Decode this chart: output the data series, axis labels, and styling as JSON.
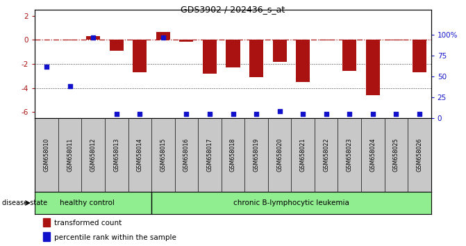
{
  "title": "GDS3902 / 202436_s_at",
  "samples": [
    "GSM658010",
    "GSM658011",
    "GSM658012",
    "GSM658013",
    "GSM658014",
    "GSM658015",
    "GSM658016",
    "GSM658017",
    "GSM658018",
    "GSM658019",
    "GSM658020",
    "GSM658021",
    "GSM658022",
    "GSM658023",
    "GSM658024",
    "GSM658025",
    "GSM658026"
  ],
  "bar_values": [
    0.05,
    -0.05,
    0.3,
    -0.9,
    -2.7,
    0.65,
    -0.15,
    -2.8,
    -2.3,
    -3.1,
    -1.8,
    -3.5,
    -0.05,
    -2.6,
    -4.6,
    -0.05,
    -2.7
  ],
  "blue_pct": [
    62,
    38,
    97,
    5,
    5,
    97,
    5,
    5,
    5,
    5,
    8,
    5,
    5,
    5,
    5,
    5,
    5
  ],
  "ylim_left": [
    -6.5,
    2.5
  ],
  "ylim_right": [
    0,
    130
  ],
  "right_ticks": [
    0,
    25,
    50,
    75,
    100
  ],
  "right_tick_labels": [
    "0",
    "25",
    "50",
    "75",
    "100%"
  ],
  "left_ticks": [
    -6,
    -4,
    -2,
    0,
    2
  ],
  "hline_y": 0.0,
  "dotted_lines": [
    -2,
    -4
  ],
  "healthy_count": 5,
  "healthy_label": "healthy control",
  "disease_label": "chronic B-lymphocytic leukemia",
  "disease_state_label": "disease state",
  "legend_bar_label": "transformed count",
  "legend_dot_label": "percentile rank within the sample",
  "bar_color": "#AA1111",
  "dot_color": "#1111CC",
  "hline_color": "#AA1111",
  "dotted_color": "#333333",
  "healthy_bg": "#90EE90",
  "disease_bg": "#90EE90",
  "sample_bg": "#C8C8C8",
  "title_fontsize": 9
}
